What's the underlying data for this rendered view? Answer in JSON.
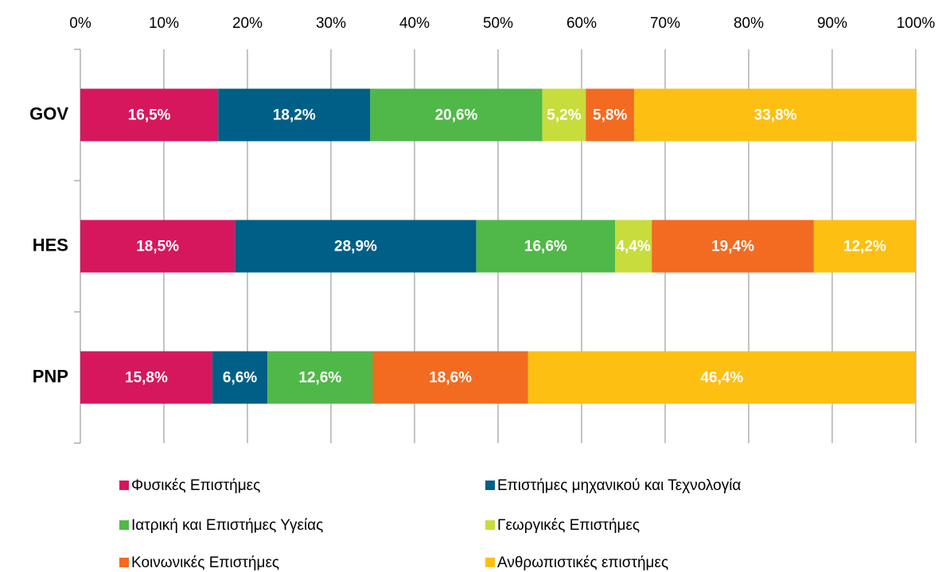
{
  "chart_data": {
    "type": "stacked_barh",
    "categories": [
      "GOV",
      "HES",
      "PNP"
    ],
    "series": [
      {
        "name": "Φυσικές Επιστήμες",
        "color": "#d6175d",
        "values": [
          16.5,
          18.5,
          15.8
        ],
        "value_labels": [
          "16,5%",
          "18,5%",
          "15,8%"
        ]
      },
      {
        "name": "Επιστήμες μηχανικού και Τεχνολογία",
        "color": "#005f87",
        "values": [
          18.2,
          28.9,
          6.6
        ],
        "value_labels": [
          "18,2%",
          "28,9%",
          "6,6%"
        ]
      },
      {
        "name": "Ιατρική και Επιστήμες Υγείας",
        "color": "#50b848",
        "values": [
          20.6,
          16.6,
          12.6
        ],
        "value_labels": [
          "20,6%",
          "16,6%",
          "12,6%"
        ]
      },
      {
        "name": "Γεωργικές Επιστήμες",
        "color": "#c8dc3c",
        "values": [
          5.2,
          4.4,
          null
        ],
        "value_labels": [
          "5,2%",
          "4,4%",
          null
        ]
      },
      {
        "name": "Κοινωνικές Επιστήμες",
        "color": "#f26b21",
        "values": [
          5.8,
          19.4,
          18.6
        ],
        "value_labels": [
          "5,8%",
          "19,4%",
          "18,6%"
        ]
      },
      {
        "name": "Ανθρωπιστικές επιστήμες",
        "color": "#fdbf11",
        "values": [
          33.8,
          12.2,
          46.4
        ],
        "value_labels": [
          "33,8%",
          "12,2%",
          "46,4%"
        ]
      }
    ],
    "xlim": [
      0,
      100
    ],
    "xticks": [
      {
        "value": 0,
        "label": "0%"
      },
      {
        "value": 10,
        "label": "10%"
      },
      {
        "value": 20,
        "label": "20%"
      },
      {
        "value": 30,
        "label": "30%"
      },
      {
        "value": 40,
        "label": "40%"
      },
      {
        "value": 50,
        "label": "50%"
      },
      {
        "value": 60,
        "label": "60%"
      },
      {
        "value": 70,
        "label": "70%"
      },
      {
        "value": 80,
        "label": "80%"
      },
      {
        "value": 90,
        "label": "90%"
      },
      {
        "value": 100,
        "label": "100%"
      }
    ],
    "grid": true
  }
}
